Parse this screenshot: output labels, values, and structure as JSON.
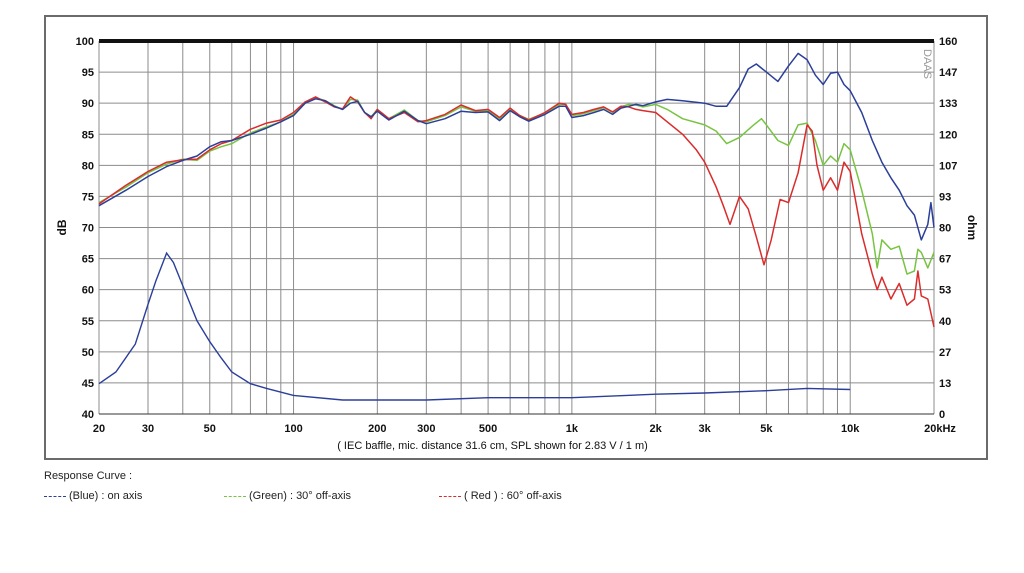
{
  "chart_data": {
    "type": "line",
    "title": "",
    "xlabel": "( IEC baffle, mic. distance 31.6 cm, SPL shown for 2.83 V / 1 m)",
    "ylabel": "dB",
    "y2label": "ohm",
    "watermark": "DAAS",
    "xscale": "log",
    "xlim": [
      20,
      20000
    ],
    "ylim": [
      40,
      100
    ],
    "y2lim": [
      0,
      160
    ],
    "grid": true,
    "x_ticks": [
      {
        "value": 20,
        "label": "20"
      },
      {
        "value": 30,
        "label": "30"
      },
      {
        "value": 50,
        "label": "50"
      },
      {
        "value": 100,
        "label": "100"
      },
      {
        "value": 200,
        "label": "200"
      },
      {
        "value": 300,
        "label": "300"
      },
      {
        "value": 500,
        "label": "500"
      },
      {
        "value": 1000,
        "label": "1k"
      },
      {
        "value": 2000,
        "label": "2k"
      },
      {
        "value": 3000,
        "label": "3k"
      },
      {
        "value": 5000,
        "label": "5k"
      },
      {
        "value": 10000,
        "label": "10k"
      },
      {
        "value": 20000,
        "label": "20kHz"
      }
    ],
    "y_ticks": [
      "40",
      "45",
      "50",
      "55",
      "60",
      "65",
      "70",
      "75",
      "80",
      "85",
      "90",
      "95",
      "100"
    ],
    "y2_ticks": [
      "0",
      "13",
      "27",
      "40",
      "53",
      "67",
      "80",
      "93",
      "107",
      "120",
      "133",
      "147",
      "160"
    ],
    "series": [
      {
        "name": "(Blue)  : on axis",
        "color": "#2b3f9a",
        "points": [
          [
            20,
            73.5
          ],
          [
            25,
            76
          ],
          [
            30,
            78.2
          ],
          [
            35,
            79.8
          ],
          [
            40,
            80.8
          ],
          [
            45,
            81.5
          ],
          [
            50,
            83
          ],
          [
            55,
            83.8
          ],
          [
            60,
            84
          ],
          [
            70,
            85
          ],
          [
            80,
            86
          ],
          [
            90,
            87
          ],
          [
            100,
            88
          ],
          [
            110,
            90
          ],
          [
            120,
            90.7
          ],
          [
            130,
            90.4
          ],
          [
            140,
            89.5
          ],
          [
            150,
            89
          ],
          [
            160,
            90
          ],
          [
            170,
            90.3
          ],
          [
            180,
            88.5
          ],
          [
            190,
            87.8
          ],
          [
            200,
            88.7
          ],
          [
            220,
            87.3
          ],
          [
            250,
            88.7
          ],
          [
            280,
            87.2
          ],
          [
            300,
            86.7
          ],
          [
            350,
            87.5
          ],
          [
            400,
            88.7
          ],
          [
            450,
            88.5
          ],
          [
            500,
            88.6
          ],
          [
            550,
            87.2
          ],
          [
            600,
            88.8
          ],
          [
            650,
            87.8
          ],
          [
            700,
            87.1
          ],
          [
            800,
            88.2
          ],
          [
            900,
            89.5
          ],
          [
            950,
            89.5
          ],
          [
            1000,
            87.7
          ],
          [
            1100,
            88
          ],
          [
            1200,
            88.5
          ],
          [
            1300,
            89
          ],
          [
            1400,
            88.2
          ],
          [
            1500,
            89.2
          ],
          [
            1600,
            89.5
          ],
          [
            1700,
            89.8
          ],
          [
            1800,
            89.6
          ],
          [
            2000,
            90.2
          ],
          [
            2200,
            90.6
          ],
          [
            2500,
            90.4
          ],
          [
            3000,
            90
          ],
          [
            3300,
            89.5
          ],
          [
            3600,
            89.5
          ],
          [
            4000,
            92.5
          ],
          [
            4300,
            95.5
          ],
          [
            4600,
            96.3
          ],
          [
            5000,
            95
          ],
          [
            5500,
            93.5
          ],
          [
            6000,
            96
          ],
          [
            6500,
            98
          ],
          [
            7000,
            97
          ],
          [
            7500,
            94.5
          ],
          [
            8000,
            93
          ],
          [
            8500,
            94.8
          ],
          [
            9000,
            95
          ],
          [
            9500,
            93
          ],
          [
            10000,
            92
          ],
          [
            11000,
            88.5
          ],
          [
            12000,
            84
          ],
          [
            13000,
            80.5
          ],
          [
            14000,
            78
          ],
          [
            15000,
            76
          ],
          [
            16000,
            73.5
          ],
          [
            17000,
            72
          ],
          [
            18000,
            68
          ],
          [
            19000,
            70.5
          ],
          [
            19500,
            74
          ],
          [
            20000,
            70
          ]
        ]
      },
      {
        "name": "(Green) : 30° off-axis",
        "color": "#77c442",
        "points": [
          [
            20,
            74
          ],
          [
            25,
            76.5
          ],
          [
            30,
            78.8
          ],
          [
            35,
            80.2
          ],
          [
            40,
            81
          ],
          [
            45,
            80.8
          ],
          [
            50,
            82.3
          ],
          [
            55,
            83
          ],
          [
            60,
            83.5
          ],
          [
            70,
            85.2
          ],
          [
            80,
            86.2
          ],
          [
            90,
            87
          ],
          [
            100,
            88.2
          ],
          [
            110,
            90
          ],
          [
            120,
            90.9
          ],
          [
            130,
            90.4
          ],
          [
            140,
            89.6
          ],
          [
            150,
            89
          ],
          [
            160,
            90.6
          ],
          [
            170,
            90.5
          ],
          [
            180,
            88.5
          ],
          [
            190,
            87.8
          ],
          [
            200,
            89
          ],
          [
            220,
            87.5
          ],
          [
            250,
            88.9
          ],
          [
            280,
            87.2
          ],
          [
            300,
            87
          ],
          [
            350,
            88
          ],
          [
            400,
            89.4
          ],
          [
            450,
            88.7
          ],
          [
            500,
            88.8
          ],
          [
            550,
            87.5
          ],
          [
            600,
            89
          ],
          [
            650,
            88
          ],
          [
            700,
            87.4
          ],
          [
            800,
            88.4
          ],
          [
            900,
            89.8
          ],
          [
            950,
            89.8
          ],
          [
            1000,
            88
          ],
          [
            1100,
            88.3
          ],
          [
            1200,
            88.8
          ],
          [
            1300,
            89.3
          ],
          [
            1400,
            88.5
          ],
          [
            1500,
            89.4
          ],
          [
            1600,
            89.8
          ],
          [
            1700,
            89.7
          ],
          [
            1800,
            89.4
          ],
          [
            2000,
            89.8
          ],
          [
            2200,
            89
          ],
          [
            2500,
            87.5
          ],
          [
            3000,
            86.5
          ],
          [
            3300,
            85.5
          ],
          [
            3600,
            83.5
          ],
          [
            4000,
            84.5
          ],
          [
            4500,
            86.5
          ],
          [
            4800,
            87.5
          ],
          [
            5000,
            86.5
          ],
          [
            5500,
            84
          ],
          [
            6000,
            83.2
          ],
          [
            6500,
            86.5
          ],
          [
            7000,
            86.8
          ],
          [
            7500,
            84
          ],
          [
            8000,
            80
          ],
          [
            8500,
            81.5
          ],
          [
            9000,
            80.5
          ],
          [
            9500,
            83.5
          ],
          [
            10000,
            82.5
          ],
          [
            11000,
            76
          ],
          [
            12000,
            69
          ],
          [
            12500,
            63.5
          ],
          [
            13000,
            68
          ],
          [
            14000,
            66.5
          ],
          [
            15000,
            67
          ],
          [
            16000,
            62.5
          ],
          [
            17000,
            63
          ],
          [
            17500,
            66.5
          ],
          [
            18000,
            66
          ],
          [
            19000,
            63.5
          ],
          [
            20000,
            66
          ]
        ]
      },
      {
        "name": "( Red ) : 60° off-axis",
        "color": "#db2b2b",
        "points": [
          [
            20,
            73.8
          ],
          [
            25,
            76.8
          ],
          [
            30,
            79
          ],
          [
            35,
            80.5
          ],
          [
            40,
            80.9
          ],
          [
            45,
            81
          ],
          [
            50,
            82.5
          ],
          [
            55,
            83.5
          ],
          [
            60,
            84
          ],
          [
            70,
            85.8
          ],
          [
            80,
            86.8
          ],
          [
            90,
            87.3
          ],
          [
            100,
            88.5
          ],
          [
            110,
            90.2
          ],
          [
            120,
            91
          ],
          [
            130,
            90.2
          ],
          [
            140,
            89.4
          ],
          [
            150,
            89.1
          ],
          [
            160,
            91
          ],
          [
            170,
            90.2
          ],
          [
            180,
            88.5
          ],
          [
            190,
            87.5
          ],
          [
            200,
            89
          ],
          [
            220,
            87.5
          ],
          [
            250,
            88.5
          ],
          [
            280,
            87
          ],
          [
            300,
            87.2
          ],
          [
            350,
            88.2
          ],
          [
            400,
            89.7
          ],
          [
            450,
            88.8
          ],
          [
            500,
            89
          ],
          [
            550,
            87.7
          ],
          [
            600,
            89.2
          ],
          [
            650,
            88
          ],
          [
            700,
            87.3
          ],
          [
            800,
            88.5
          ],
          [
            900,
            90
          ],
          [
            950,
            89.8
          ],
          [
            1000,
            88.2
          ],
          [
            1100,
            88.5
          ],
          [
            1200,
            89
          ],
          [
            1300,
            89.4
          ],
          [
            1400,
            88.6
          ],
          [
            1500,
            89.5
          ],
          [
            1600,
            89.4
          ],
          [
            1700,
            89
          ],
          [
            1800,
            88.8
          ],
          [
            2000,
            88.5
          ],
          [
            2200,
            87
          ],
          [
            2500,
            85
          ],
          [
            2800,
            82.5
          ],
          [
            3000,
            80.5
          ],
          [
            3300,
            76.5
          ],
          [
            3500,
            73.5
          ],
          [
            3700,
            70.5
          ],
          [
            4000,
            75
          ],
          [
            4300,
            73
          ],
          [
            4600,
            68.5
          ],
          [
            4900,
            64
          ],
          [
            5200,
            68
          ],
          [
            5600,
            74.5
          ],
          [
            6000,
            74
          ],
          [
            6500,
            78.8
          ],
          [
            7000,
            86.5
          ],
          [
            7300,
            85.5
          ],
          [
            7600,
            80
          ],
          [
            8000,
            76
          ],
          [
            8500,
            78
          ],
          [
            9000,
            76
          ],
          [
            9500,
            80.5
          ],
          [
            10000,
            79
          ],
          [
            11000,
            69
          ],
          [
            12000,
            62.5
          ],
          [
            12500,
            60
          ],
          [
            13000,
            62
          ],
          [
            14000,
            58.5
          ],
          [
            15000,
            61
          ],
          [
            16000,
            57.5
          ],
          [
            17000,
            58.5
          ],
          [
            17500,
            63
          ],
          [
            18000,
            59
          ],
          [
            19000,
            58.5
          ],
          [
            20000,
            54
          ]
        ]
      }
    ],
    "impedance_series": {
      "color": "#2b3f9a",
      "unit": "ohm",
      "points": [
        [
          20,
          13
        ],
        [
          23,
          18
        ],
        [
          27,
          30
        ],
        [
          30,
          47
        ],
        [
          32,
          57
        ],
        [
          35,
          69
        ],
        [
          37,
          65
        ],
        [
          40,
          55
        ],
        [
          45,
          40
        ],
        [
          50,
          31
        ],
        [
          55,
          24
        ],
        [
          60,
          18
        ],
        [
          70,
          13
        ],
        [
          80,
          11
        ],
        [
          100,
          8
        ],
        [
          150,
          6
        ],
        [
          200,
          6
        ],
        [
          300,
          6
        ],
        [
          500,
          7
        ],
        [
          1000,
          7
        ],
        [
          2000,
          8.5
        ],
        [
          3000,
          9
        ],
        [
          5000,
          10
        ],
        [
          7000,
          11
        ],
        [
          10000,
          10.5
        ]
      ]
    }
  },
  "legend": {
    "title": "Response Curve :",
    "items": [
      {
        "label": "(Blue)  : on axis",
        "color": "#2b3f9a"
      },
      {
        "label": "(Green) : 30° off-axis",
        "color": "#77c442"
      },
      {
        "label": "( Red ) : 60° off-axis",
        "color": "#db2b2b"
      }
    ]
  }
}
